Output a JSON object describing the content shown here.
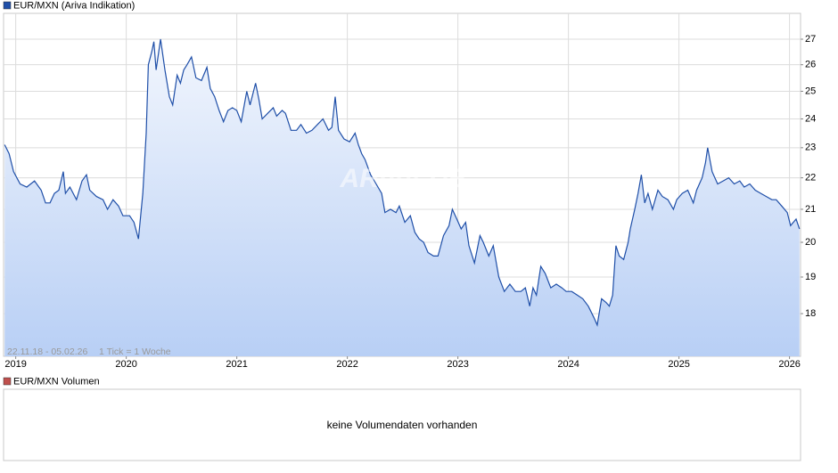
{
  "chart_data": {
    "type": "line",
    "x": [
      2018.9,
      2018.94,
      2018.98,
      2019.04,
      2019.1,
      2019.17,
      2019.23,
      2019.27,
      2019.31,
      2019.35,
      2019.39,
      2019.43,
      2019.45,
      2019.49,
      2019.55,
      2019.6,
      2019.64,
      2019.67,
      2019.73,
      2019.79,
      2019.83,
      2019.88,
      2019.93,
      2019.97,
      2020.03,
      2020.07,
      2020.11,
      2020.15,
      2020.18,
      2020.2,
      2020.23,
      2020.25,
      2020.27,
      2020.31,
      2020.35,
      2020.39,
      2020.42,
      2020.46,
      2020.49,
      2020.52,
      2020.55,
      2020.59,
      2020.63,
      2020.68,
      2020.73,
      2020.76,
      2020.8,
      2020.84,
      2020.88,
      2020.92,
      2020.96,
      2021.0,
      2021.04,
      2021.09,
      2021.12,
      2021.17,
      2021.2,
      2021.23,
      2021.28,
      2021.33,
      2021.36,
      2021.41,
      2021.44,
      2021.49,
      2021.54,
      2021.58,
      2021.63,
      2021.68,
      2021.73,
      2021.78,
      2021.83,
      2021.86,
      2021.89,
      2021.92,
      2021.97,
      2022.02,
      2022.07,
      2022.1,
      2022.13,
      2022.16,
      2022.21,
      2022.26,
      2022.31,
      2022.34,
      2022.39,
      2022.44,
      2022.47,
      2022.52,
      2022.57,
      2022.61,
      2022.65,
      2022.69,
      2022.73,
      2022.78,
      2022.82,
      2022.87,
      2022.92,
      2022.95,
      2022.99,
      2023.03,
      2023.07,
      2023.1,
      2023.15,
      2023.2,
      2023.23,
      2023.28,
      2023.32,
      2023.37,
      2023.42,
      2023.47,
      2023.52,
      2023.57,
      2023.61,
      2023.65,
      2023.68,
      2023.71,
      2023.75,
      2023.79,
      2023.84,
      2023.89,
      2023.94,
      2023.98,
      2024.03,
      2024.08,
      2024.13,
      2024.18,
      2024.23,
      2024.26,
      2024.3,
      2024.34,
      2024.37,
      2024.4,
      2024.43,
      2024.46,
      2024.5,
      2024.54,
      2024.56,
      2024.6,
      2024.63,
      2024.66,
      2024.69,
      2024.72,
      2024.76,
      2024.81,
      2024.85,
      2024.9,
      2024.95,
      2024.98,
      2025.03,
      2025.08,
      2025.13,
      2025.16,
      2025.21,
      2025.24,
      2025.26,
      2025.3,
      2025.35,
      2025.4,
      2025.45,
      2025.5,
      2025.55,
      2025.59,
      2025.64,
      2025.69,
      2025.74,
      2025.79,
      2025.84,
      2025.88,
      2025.93,
      2025.98,
      2026.01,
      2026.06,
      2026.09
    ],
    "series": [
      {
        "name": "EUR/MXN (Ariva Indikation)",
        "color": "#1f4fa8",
        "values": [
          23.1,
          22.8,
          22.2,
          21.8,
          21.7,
          21.9,
          21.6,
          21.2,
          21.2,
          21.5,
          21.6,
          22.2,
          21.5,
          21.7,
          21.3,
          21.9,
          22.1,
          21.6,
          21.4,
          21.3,
          21.0,
          21.3,
          21.1,
          20.8,
          20.8,
          20.6,
          20.1,
          21.5,
          23.5,
          26.0,
          26.5,
          26.9,
          25.8,
          27.0,
          25.8,
          24.8,
          24.5,
          25.6,
          25.3,
          25.8,
          26.0,
          26.3,
          25.5,
          25.4,
          25.9,
          25.1,
          24.8,
          24.3,
          23.9,
          24.3,
          24.4,
          24.3,
          23.9,
          25.0,
          24.5,
          25.3,
          24.7,
          24.0,
          24.2,
          24.4,
          24.1,
          24.3,
          24.2,
          23.6,
          23.6,
          23.8,
          23.5,
          23.6,
          23.8,
          24.0,
          23.6,
          23.7,
          24.8,
          23.6,
          23.3,
          23.2,
          23.5,
          23.1,
          22.8,
          22.6,
          22.1,
          21.8,
          21.5,
          20.9,
          21.0,
          20.9,
          21.1,
          20.6,
          20.8,
          20.3,
          20.1,
          20.0,
          19.7,
          19.6,
          19.6,
          20.2,
          20.5,
          21.0,
          20.7,
          20.4,
          20.6,
          19.9,
          19.4,
          20.2,
          20.0,
          19.6,
          19.9,
          19.0,
          18.6,
          18.8,
          18.6,
          18.6,
          18.7,
          18.2,
          18.7,
          18.5,
          19.3,
          19.1,
          18.7,
          18.8,
          18.7,
          18.6,
          18.6,
          18.5,
          18.4,
          18.2,
          17.9,
          17.7,
          18.4,
          18.3,
          18.2,
          18.5,
          19.9,
          19.6,
          19.5,
          20.0,
          20.4,
          21.0,
          21.5,
          22.1,
          21.2,
          21.5,
          21.0,
          21.6,
          21.4,
          21.3,
          21.0,
          21.3,
          21.5,
          21.6,
          21.2,
          21.6,
          22.0,
          22.5,
          23.0,
          22.2,
          21.8,
          21.9,
          22.0,
          21.8,
          21.9,
          21.7,
          21.8,
          21.6,
          21.5,
          21.4,
          21.3,
          21.3,
          21.1,
          20.9,
          20.5,
          20.7,
          20.4
        ]
      }
    ],
    "xlim": [
      2018.89,
      2026.1
    ],
    "xticks": [
      2019,
      2020,
      2021,
      2022,
      2023,
      2024,
      2025,
      2026
    ],
    "ylim": [
      16.9,
      28.05
    ],
    "yticks": [
      18,
      19,
      20,
      21,
      22,
      23,
      24,
      25,
      26,
      27
    ],
    "yscale": "log",
    "grid": true,
    "annotations": [
      "22.11.18 - 05.02.26",
      "1 Tick = 1 Woche",
      "ARIVA.DE"
    ]
  },
  "volume_panel": {
    "title": "EUR/MXN Volumen",
    "color": "#c0504d",
    "message": "keine Volumendaten vorhanden"
  }
}
